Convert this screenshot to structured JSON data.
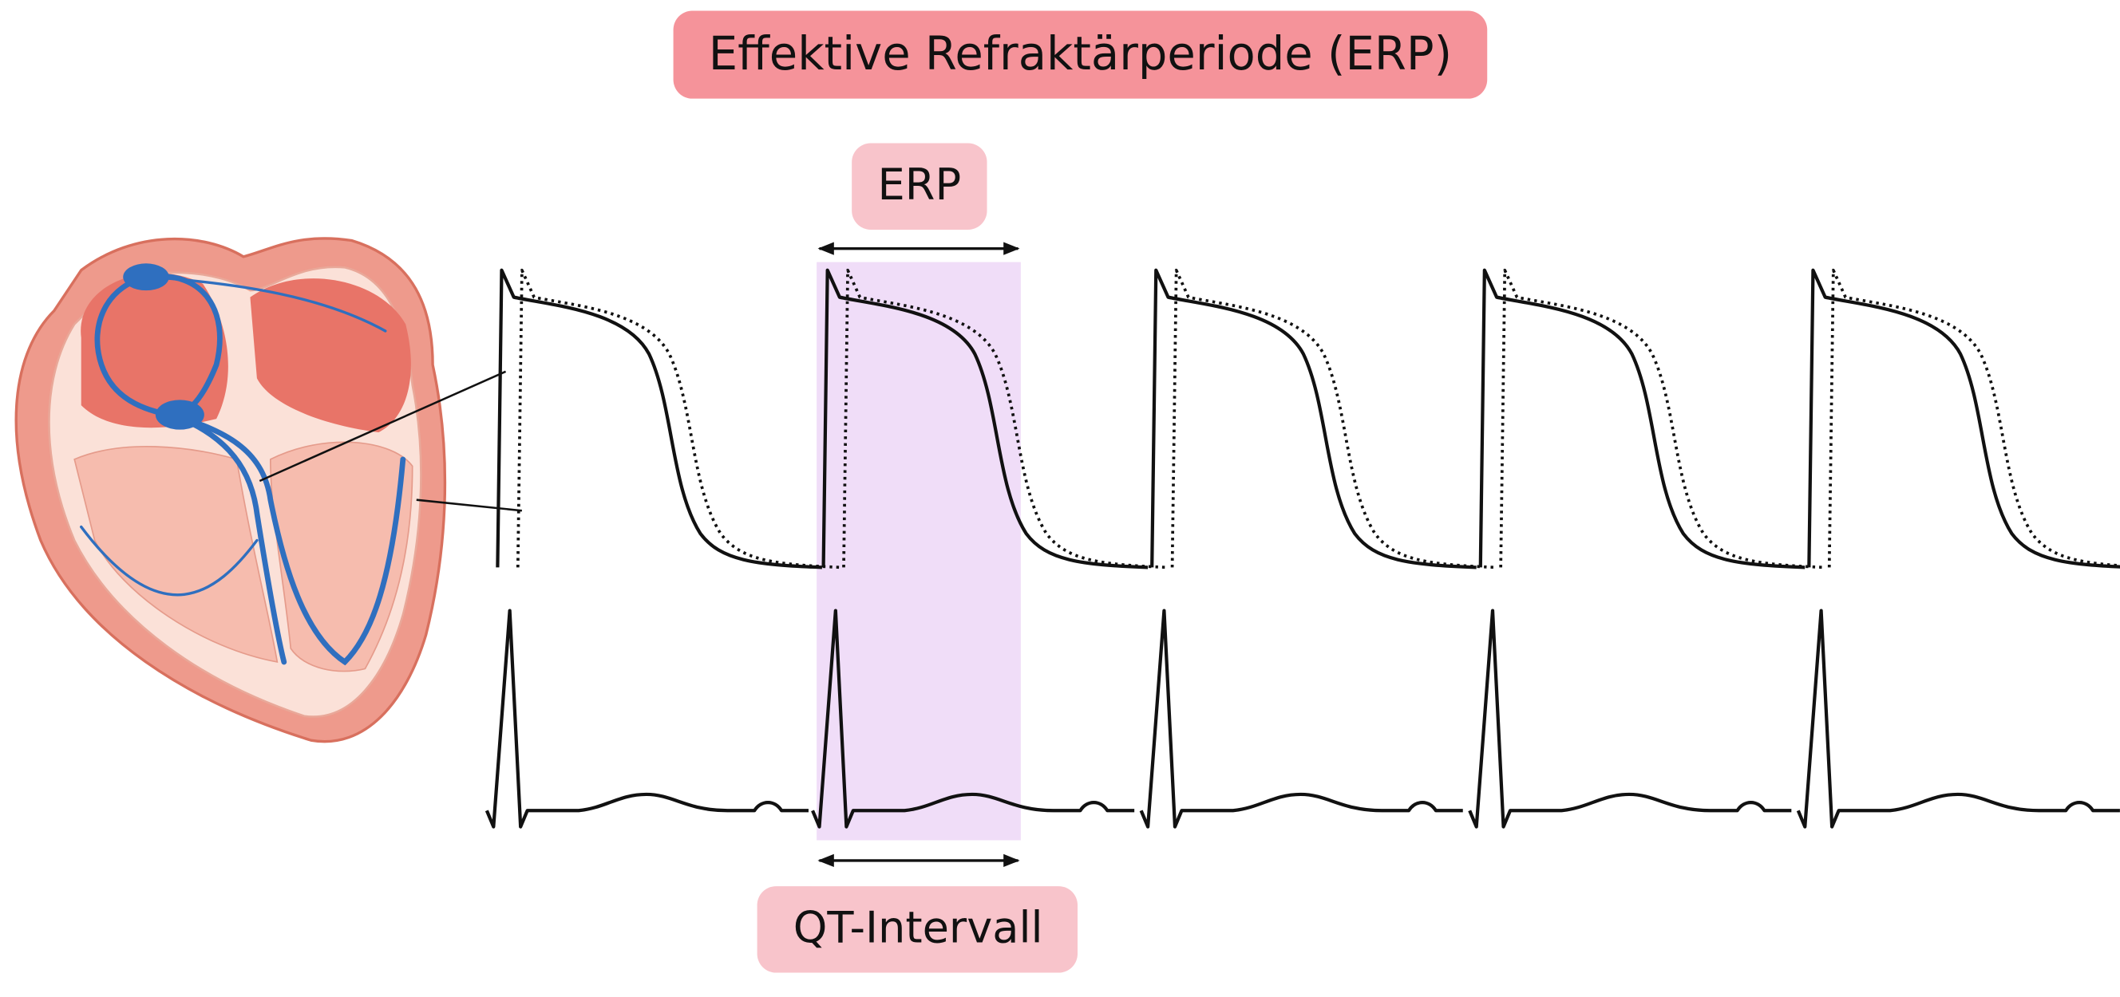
{
  "title": "Effektive Refraktärperiode (ERP)",
  "erp_label": "ERP",
  "qt_label": "QT-Intervall"
}
